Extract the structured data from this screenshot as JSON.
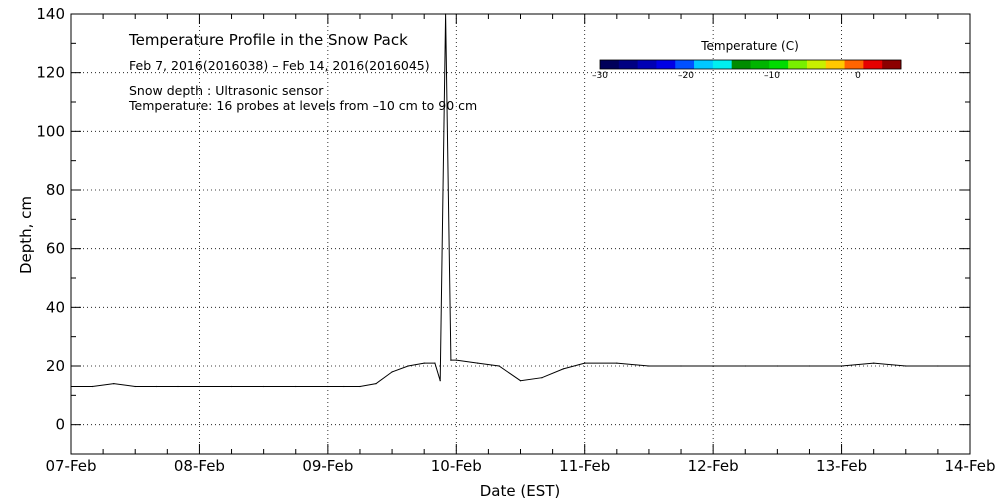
{
  "chart_data": {
    "type": "line",
    "title": "Temperature Profile in the Snow Pack",
    "subtitle": "Feb  7, 2016(2016038) – Feb 14, 2016(2016045)",
    "annotations": [
      "Snow depth : Ultrasonic sensor",
      "Temperature: 16 probes at levels from –10 cm to 90 cm"
    ],
    "xlabel": "Date (EST)",
    "ylabel": "Depth, cm",
    "xlim": [
      "2016-02-07",
      "2016-02-14"
    ],
    "ylim": [
      -10,
      140
    ],
    "x_ticks": [
      "07-Feb",
      "08-Feb",
      "09-Feb",
      "10-Feb",
      "11-Feb",
      "12-Feb",
      "13-Feb",
      "14-Feb"
    ],
    "y_ticks": [
      "0",
      "20",
      "40",
      "60",
      "80",
      "100",
      "120",
      "140"
    ],
    "grid": true,
    "colorbar": {
      "title": "Temperature (C)",
      "ticks": [
        "–30",
        "–20",
        "–10",
        "0"
      ],
      "tick_values": [
        -30,
        -20,
        -10,
        0
      ],
      "range": [
        -30,
        5
      ],
      "colors": [
        "#00005a",
        "#000082",
        "#0000b4",
        "#0000e6",
        "#0050ff",
        "#00c8ff",
        "#00f0f0",
        "#008c00",
        "#00b400",
        "#00dc00",
        "#78f000",
        "#c8f000",
        "#ffc800",
        "#ff6400",
        "#e60000",
        "#8c0000"
      ]
    },
    "series": [
      {
        "line_color": "#000000",
        "x": [
          "2016-02-07T00:00",
          "2016-02-07T04:00",
          "2016-02-07T08:00",
          "2016-02-07T12:00",
          "2016-02-07T16:00",
          "2016-02-07T20:00",
          "2016-02-08T00:00",
          "2016-02-08T06:00",
          "2016-02-08T12:00",
          "2016-02-08T18:00",
          "2016-02-09T00:00",
          "2016-02-09T03:00",
          "2016-02-09T06:00",
          "2016-02-09T09:00",
          "2016-02-09T12:00",
          "2016-02-09T15:00",
          "2016-02-09T18:00",
          "2016-02-09T20:00",
          "2016-02-09T21:00",
          "2016-02-09T22:00",
          "2016-02-09T23:00",
          "2016-02-10T00:00",
          "2016-02-10T04:00",
          "2016-02-10T08:00",
          "2016-02-10T12:00",
          "2016-02-10T16:00",
          "2016-02-10T20:00",
          "2016-02-11T00:00",
          "2016-02-11T06:00",
          "2016-02-11T12:00",
          "2016-02-11T18:00",
          "2016-02-12T00:00",
          "2016-02-12T06:00",
          "2016-02-12T12:00",
          "2016-02-12T18:00",
          "2016-02-13T00:00",
          "2016-02-13T06:00",
          "2016-02-13T12:00",
          "2016-02-13T18:00",
          "2016-02-14T00:00"
        ],
        "y": [
          13,
          13,
          14,
          13,
          13,
          13,
          13,
          13,
          13,
          13,
          13,
          13,
          13,
          14,
          18,
          20,
          21,
          21,
          15,
          140,
          22,
          22,
          21,
          20,
          15,
          16,
          19,
          21,
          21,
          20,
          20,
          20,
          20,
          20,
          20,
          20,
          21,
          20,
          20,
          20
        ]
      }
    ]
  }
}
